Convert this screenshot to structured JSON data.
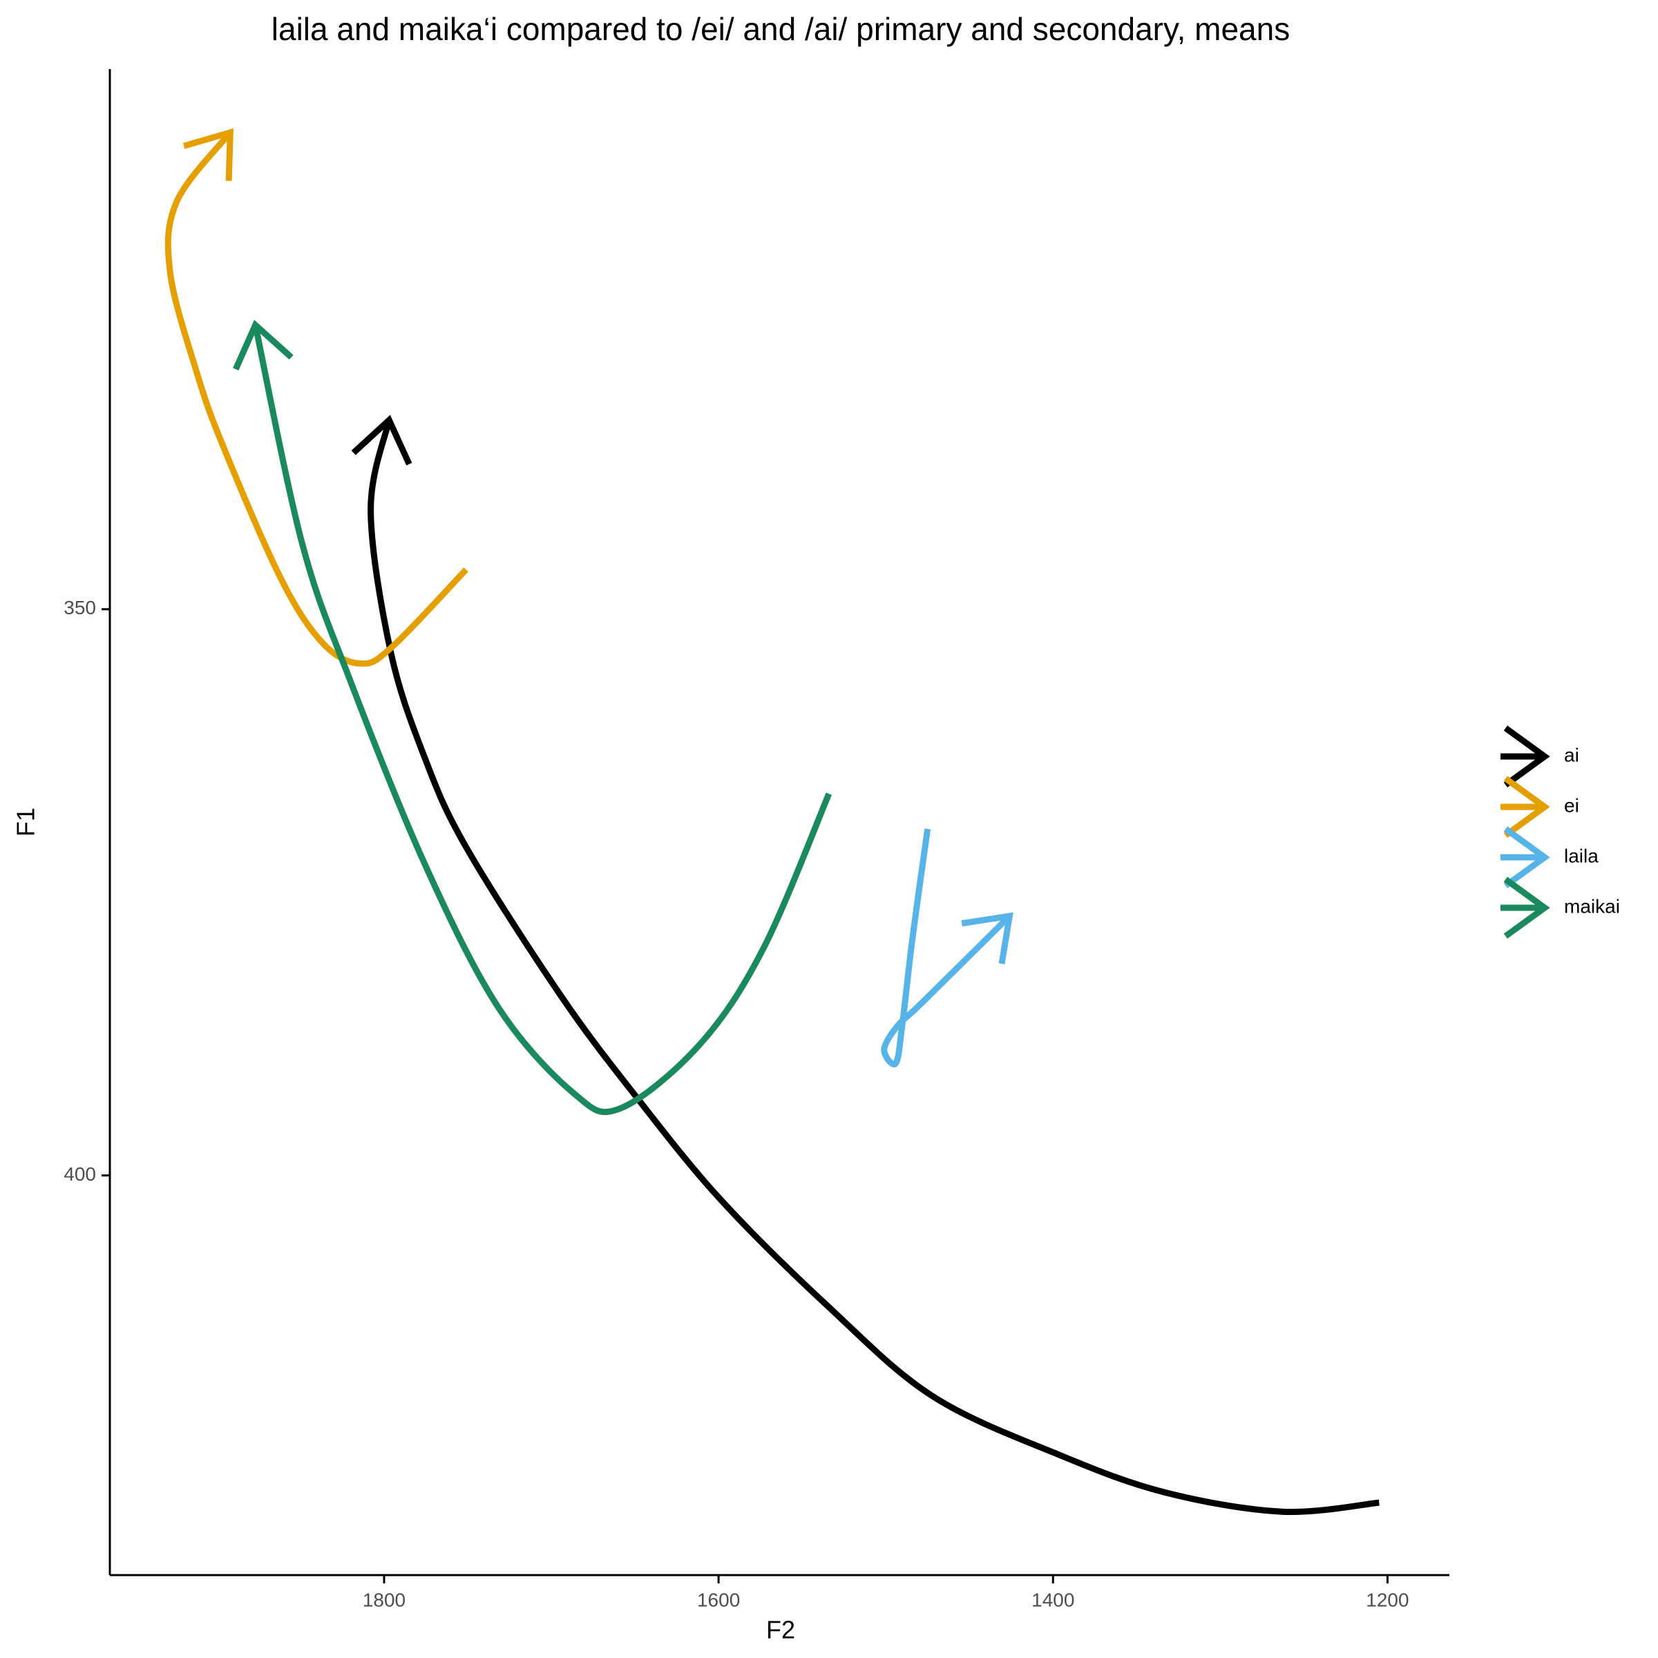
{
  "chart_data": {
    "type": "line",
    "title": "laila and maika‘i compared to /ei/ and /ai/ primary and secondary, means",
    "x_label": "F2",
    "y_label": "F1",
    "xlim": [
      1964,
      1163
    ],
    "ylim": [
      302.3,
      435.3
    ],
    "y_reversed": true,
    "xticks": [
      1800,
      1600,
      1400,
      1200
    ],
    "yticks": [
      350,
      400
    ],
    "series": [
      {
        "name": "ai",
        "color": "#000000",
        "x": [
          1205,
          1263,
          1333,
          1396,
          1472,
          1535,
          1599,
          1649,
          1694,
          1751,
          1776,
          1796,
          1808,
          1797
        ],
        "values": [
          428.9,
          429.7,
          428.0,
          424.7,
          419.5,
          411.5,
          402.1,
          393.1,
          384.2,
          371.0,
          363.0,
          353.8,
          341.3,
          333.3
        ]
      },
      {
        "name": "ei",
        "color": "#E69F00",
        "x": [
          1751,
          1795,
          1814,
          1836,
          1861,
          1896,
          1912,
          1928,
          1924,
          1892
        ],
        "values": [
          346.5,
          353.3,
          354.8,
          353.1,
          347.5,
          335.7,
          329.1,
          320.2,
          314.0,
          307.9
        ]
      },
      {
        "name": "laila",
        "color": "#56B4E9",
        "x": [
          1475,
          1484,
          1490,
          1494,
          1501,
          1493,
          1478,
          1426
        ],
        "values": [
          369.4,
          379.0,
          386.5,
          390.1,
          388.9,
          386.8,
          384.7,
          377.1
        ]
      },
      {
        "name": "maikai",
        "color": "#1A8A5E",
        "x": [
          1534,
          1573,
          1611,
          1659,
          1687,
          1732,
          1776,
          1820,
          1849,
          1877
        ],
        "values": [
          366.3,
          379.9,
          388.4,
          394.1,
          392.7,
          385.1,
          372.4,
          356.4,
          344.2,
          324.9
        ]
      }
    ]
  }
}
